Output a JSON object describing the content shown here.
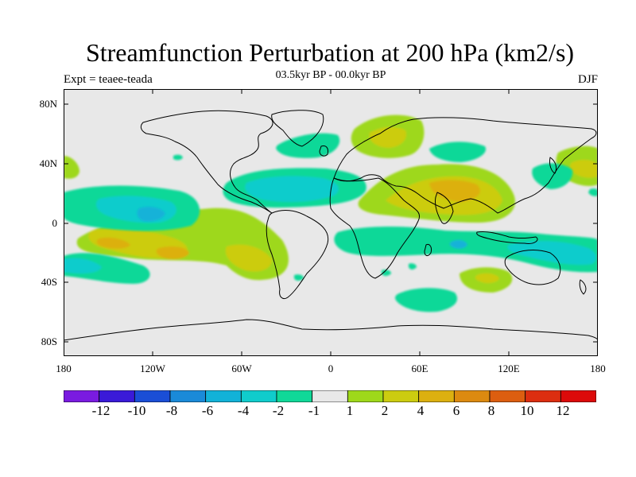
{
  "title": "Streamfunction Perturbation at 200 hPa (km2/s)",
  "subtitle": "03.5kyr BP - 00.0kyr BP",
  "experiment": "Expt = teaee-teada",
  "season": "DJF",
  "lat_ticks": [
    "80N",
    "40N",
    "0",
    "40S",
    "80S"
  ],
  "lon_ticks": [
    "180",
    "120W",
    "60W",
    "0",
    "60E",
    "120E",
    "180"
  ],
  "legend": {
    "labels": [
      "-12",
      "-10",
      "-8",
      "-6",
      "-4",
      "-2",
      "-1",
      "1",
      "2",
      "4",
      "6",
      "8",
      "10",
      "12"
    ],
    "colors": [
      "#7a1be0",
      "#3a1ad8",
      "#1a4ed6",
      "#1a8ad8",
      "#12b2d8",
      "#10cccc",
      "#10d898",
      "#e8e8e8",
      "#9ed81a",
      "#cccc10",
      "#dcb010",
      "#dc8a10",
      "#dc5e10",
      "#dc2e10",
      "#dc0a0a"
    ]
  },
  "colors": {
    "background": "#e8e8e8",
    "c_m1": "#10d898",
    "c_m2": "#10cccc",
    "c_m4": "#12b2d8",
    "c_p1": "#9ed81a",
    "c_p2": "#cccc10",
    "c_p4": "#dcb010"
  }
}
